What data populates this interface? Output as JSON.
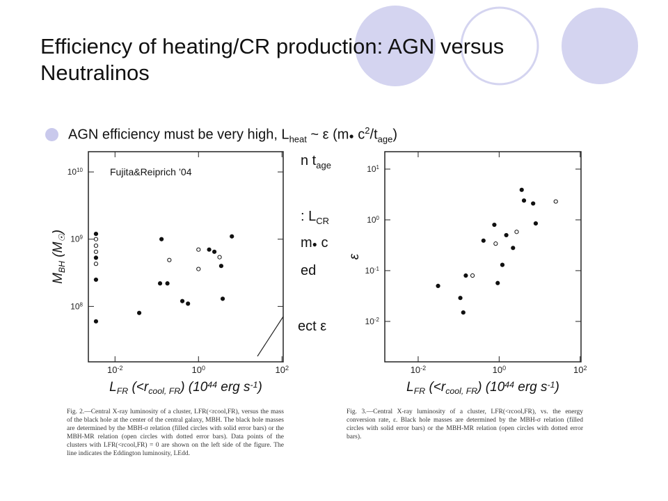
{
  "slide": {
    "title": "Efficiency of heating/CR production: AGN versus Neutralinos",
    "bullets": [
      {
        "segments": [
          {
            "t": "AGN efficiency must be very high, L",
            "s": "base"
          },
          {
            "t": "heat",
            "s": "sub"
          },
          {
            "t": " ~ ε (m",
            "s": "base"
          },
          {
            "t": "●",
            "s": "base"
          },
          {
            "t": " c",
            "s": "base"
          },
          {
            "t": "2",
            "s": "sup"
          },
          {
            "t": "/t",
            "s": "base"
          },
          {
            "t": "age",
            "s": "sub"
          },
          {
            "t": ")",
            "s": "base"
          }
        ]
      }
    ],
    "fragments": [
      {
        "segments": [
          {
            "t": "n t",
            "s": "base"
          },
          {
            "t": "age",
            "s": "sub"
          }
        ]
      },
      {
        "segments": [
          {
            "t": ": L",
            "s": "base"
          },
          {
            "t": "CR",
            "s": "sub"
          }
        ]
      },
      {
        "segments": [
          {
            "t": "m",
            "s": "base"
          },
          {
            "t": "●",
            "s": "base"
          },
          {
            "t": " c",
            "s": "base"
          }
        ]
      },
      {
        "segments": [
          {
            "t": "ed",
            "s": "base"
          }
        ]
      },
      {
        "segments": [
          {
            "t": "ect ε",
            "s": "base"
          }
        ]
      }
    ],
    "figures": [
      {
        "annotation": "Fujita&Reiprich ’04",
        "log": true,
        "eddington_line": true,
        "xlim": [
          0.0023,
          107
        ],
        "ylim": [
          15000000,
          20000000000
        ],
        "xticks": [
          {
            "value": 0.01,
            "label": "10",
            "exponent": "-2"
          },
          {
            "value": 1,
            "label": "10",
            "exponent": "0"
          },
          {
            "value": 100,
            "label": "10",
            "exponent": "2"
          }
        ],
        "yticks": [
          {
            "value": 100000000,
            "label": "10",
            "exponent": "8"
          },
          {
            "value": 1000000000,
            "label": "10",
            "exponent": "9"
          },
          {
            "value": 10000000000,
            "label": "10",
            "exponent": "10"
          }
        ],
        "x_label": [
          {
            "t": "L",
            "s": "base"
          },
          {
            "t": "FR",
            "s": "sub"
          },
          {
            "t": " (<r",
            "s": "base"
          },
          {
            "t": "cool, FR",
            "s": "sub"
          },
          {
            "t": ") (10",
            "s": "base"
          },
          {
            "t": "44",
            "s": "sup"
          },
          {
            "t": " erg s",
            "s": "base"
          },
          {
            "t": "-1",
            "s": "sup"
          },
          {
            "t": ")",
            "s": "base"
          }
        ],
        "y_label": [
          {
            "t": "M",
            "s": "base"
          },
          {
            "t": "BH",
            "s": "sub"
          },
          {
            "t": " (M",
            "s": "base"
          },
          {
            "t": "☉",
            "s": "sub"
          },
          {
            "t": ")",
            "s": "base"
          }
        ],
        "points": [
          {
            "x": 0.13,
            "y": 1000000000,
            "filled": true
          },
          {
            "x": 0.2,
            "y": 490000000,
            "filled": false
          },
          {
            "x": 0.12,
            "y": 220000000,
            "filled": true
          },
          {
            "x": 0.18,
            "y": 220000000,
            "filled": true
          },
          {
            "x": 0.41,
            "y": 120000000,
            "filled": true
          },
          {
            "x": 0.56,
            "y": 110000000,
            "filled": true
          },
          {
            "x": 1.0,
            "y": 700000000,
            "filled": false
          },
          {
            "x": 1.0,
            "y": 360000000,
            "filled": false
          },
          {
            "x": 1.8,
            "y": 700000000,
            "filled": true
          },
          {
            "x": 2.4,
            "y": 650000000,
            "filled": true
          },
          {
            "x": 3.2,
            "y": 540000000,
            "filled": false
          },
          {
            "x": 3.5,
            "y": 400000000,
            "filled": true
          },
          {
            "x": 3.8,
            "y": 130000000,
            "filled": true
          },
          {
            "x": 6.3,
            "y": 1100000000,
            "filled": true
          },
          {
            "x": 0.038,
            "y": 80000000,
            "filled": true
          },
          {
            "x": 0.0035,
            "y": 1200000000,
            "filled": true
          },
          {
            "x": 0.0035,
            "y": 1000000000,
            "filled": false
          },
          {
            "x": 0.0035,
            "y": 800000000,
            "filled": false
          },
          {
            "x": 0.0035,
            "y": 650000000,
            "filled": false
          },
          {
            "x": 0.0035,
            "y": 530000000,
            "filled": true
          },
          {
            "x": 0.0035,
            "y": 430000000,
            "filled": false
          },
          {
            "x": 0.0035,
            "y": 250000000,
            "filled": true
          },
          {
            "x": 0.0035,
            "y": 60000000,
            "filled": true
          }
        ],
        "caption": "Fig. 2.—Central X-ray luminosity of a cluster, LFR(<rcool,FR), versus the mass of the black hole at the center of the central galaxy, MBH. The black hole masses are determined by the MBH-σ relation (filled circles with solid error bars) or the MBH-MR relation (open circles with dotted error bars). Data points of the clusters with LFR(<rcool,FR) = 0 are shown on the left side of the figure. The line indicates the Eddington luminosity, LEdd."
      },
      {
        "log": true,
        "eddington_line": false,
        "xlim": [
          0.0015,
          105
        ],
        "ylim": [
          0.0016,
          22
        ],
        "xticks": [
          {
            "value": 0.01,
            "label": "10",
            "exponent": "-2"
          },
          {
            "value": 1,
            "label": "10",
            "exponent": "0"
          },
          {
            "value": 100,
            "label": "10",
            "exponent": "2"
          }
        ],
        "yticks": [
          {
            "value": 0.01,
            "label": "10",
            "exponent": "-2"
          },
          {
            "value": 0.1,
            "label": "10",
            "exponent": "-1"
          },
          {
            "value": 1,
            "label": "10",
            "exponent": "0"
          },
          {
            "value": 10,
            "label": "10",
            "exponent": "1"
          }
        ],
        "x_label": [
          {
            "t": "L",
            "s": "base"
          },
          {
            "t": "FR",
            "s": "sub"
          },
          {
            "t": " (<r",
            "s": "base"
          },
          {
            "t": "cool, FR",
            "s": "sub"
          },
          {
            "t": ") (10",
            "s": "base"
          },
          {
            "t": "44",
            "s": "sup"
          },
          {
            "t": " erg s",
            "s": "base"
          },
          {
            "t": "-1",
            "s": "sup"
          },
          {
            "t": ")",
            "s": "base"
          }
        ],
        "y_label": [
          {
            "t": "ε",
            "s": "base"
          }
        ],
        "points": [
          {
            "x": 0.031,
            "y": 0.05,
            "filled": true
          },
          {
            "x": 0.11,
            "y": 0.029,
            "filled": true
          },
          {
            "x": 0.13,
            "y": 0.015,
            "filled": true
          },
          {
            "x": 0.15,
            "y": 0.08,
            "filled": true
          },
          {
            "x": 0.22,
            "y": 0.08,
            "filled": false
          },
          {
            "x": 0.41,
            "y": 0.39,
            "filled": true
          },
          {
            "x": 0.76,
            "y": 0.8,
            "filled": true
          },
          {
            "x": 0.82,
            "y": 0.34,
            "filled": false
          },
          {
            "x": 0.92,
            "y": 0.057,
            "filled": true
          },
          {
            "x": 1.2,
            "y": 0.13,
            "filled": true
          },
          {
            "x": 1.5,
            "y": 0.5,
            "filled": true
          },
          {
            "x": 2.2,
            "y": 0.28,
            "filled": true
          },
          {
            "x": 2.7,
            "y": 0.58,
            "filled": false
          },
          {
            "x": 3.6,
            "y": 3.9,
            "filled": true
          },
          {
            "x": 4.1,
            "y": 2.4,
            "filled": true
          },
          {
            "x": 6.9,
            "y": 2.1,
            "filled": true
          },
          {
            "x": 8.0,
            "y": 0.85,
            "filled": true
          },
          {
            "x": 25,
            "y": 2.3,
            "filled": false
          }
        ],
        "caption": "Fig. 3.—Central X-ray luminosity of a cluster, LFR(<rcool,FR), vs. the energy conversion rate, ε. Black hole masses are determined by the MBH-σ relation (filled circles with solid error bars) or the MBH-MR relation (open circles with dotted error bars)."
      }
    ]
  }
}
